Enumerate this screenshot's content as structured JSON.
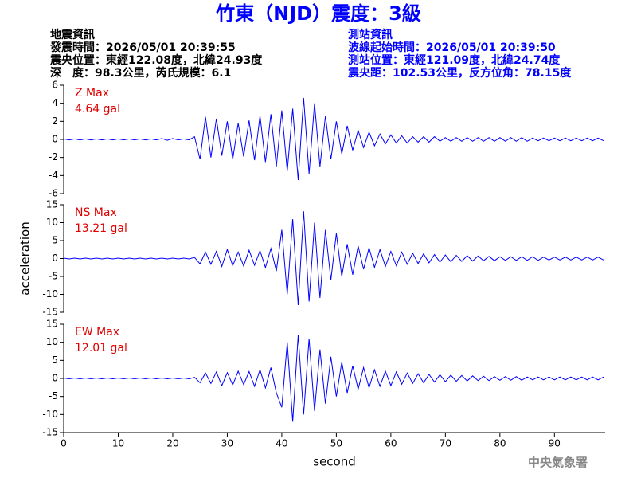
{
  "header": {
    "title": "竹東（NJD）震度：3級",
    "left": [
      "地震資訊",
      "發震時間：2026/05/01 20:39:55",
      "震央位置：東經122.08度，北緯24.93度",
      "深　度：98.3公里，芮氏規模：6.1"
    ],
    "right": [
      "測站資訊",
      "波線起始時間：2026/05/01 20:39:50",
      "測站位置：東經121.09度，北緯24.74度",
      "震央距：102.53公里，反方位角：78.15度"
    ]
  },
  "footer": "中央氣象署",
  "chart_data": [
    {
      "type": "line",
      "annotations": [
        "Z Max",
        "4.64 gal"
      ],
      "annotation_color": "#e00000",
      "xlim": [
        0,
        99.3
      ],
      "ylim": [
        -6,
        6
      ],
      "yticks": [
        -6,
        -4,
        -2,
        0,
        2,
        4,
        6
      ],
      "x": [
        0,
        1,
        2,
        3,
        4,
        5,
        6,
        7,
        8,
        9,
        10,
        11,
        12,
        13,
        14,
        15,
        16,
        17,
        18,
        19,
        20,
        21,
        22,
        23,
        24,
        25,
        26,
        27,
        28,
        29,
        30,
        31,
        32,
        33,
        34,
        35,
        36,
        37,
        38,
        39,
        40,
        41,
        42,
        43,
        44,
        45,
        46,
        47,
        48,
        49,
        50,
        51,
        52,
        53,
        54,
        55,
        56,
        57,
        58,
        59,
        60,
        61,
        62,
        63,
        64,
        65,
        66,
        67,
        68,
        69,
        70,
        71,
        72,
        73,
        74,
        75,
        76,
        77,
        78,
        79,
        80,
        81,
        82,
        83,
        84,
        85,
        86,
        87,
        88,
        89,
        90,
        91,
        92,
        93,
        94,
        95,
        96,
        97,
        98,
        99
      ],
      "series": [
        {
          "color": "#0000ff",
          "values": [
            0.05,
            -0.05,
            0.05,
            -0.05,
            0.05,
            -0.05,
            0.05,
            -0.05,
            0.05,
            -0.05,
            0.05,
            -0.05,
            0.05,
            -0.05,
            0.05,
            -0.05,
            0.05,
            -0.05,
            0.1,
            -0.1,
            0.1,
            -0.05,
            0.05,
            -0.05,
            0.3,
            -2.2,
            2.5,
            -2.0,
            2.3,
            -1.8,
            2.0,
            -2.2,
            1.8,
            -1.9,
            2.1,
            -2.3,
            2.6,
            -2.5,
            2.8,
            -3.0,
            3.2,
            -3.5,
            3.4,
            -4.5,
            4.6,
            -3.8,
            4.0,
            -3.0,
            2.6,
            -2.2,
            2.0,
            -1.6,
            1.5,
            -1.2,
            1.0,
            -0.9,
            0.8,
            -0.7,
            0.6,
            -0.5,
            0.5,
            -0.4,
            0.4,
            -0.4,
            0.3,
            -0.3,
            0.3,
            -0.3,
            0.3,
            -0.2,
            0.2,
            -0.2,
            0.2,
            -0.2,
            0.2,
            -0.2,
            0.2,
            -0.2,
            0.2,
            -0.2,
            0.2,
            -0.2,
            0.2,
            -0.2,
            0.2,
            -0.2,
            0.15,
            -0.15,
            0.15,
            -0.15,
            0.15,
            -0.15,
            0.15,
            -0.15,
            0.15,
            -0.15,
            0.15,
            -0.15,
            0.15,
            -0.15
          ]
        }
      ]
    },
    {
      "type": "line",
      "annotations": [
        "NS Max",
        "13.21 gal"
      ],
      "annotation_color": "#e00000",
      "ylabel": "acceleration",
      "xlim": [
        0,
        99.3
      ],
      "ylim": [
        -15,
        15
      ],
      "yticks": [
        -15,
        -10,
        -5,
        0,
        5,
        10,
        15
      ],
      "x": [
        0,
        1,
        2,
        3,
        4,
        5,
        6,
        7,
        8,
        9,
        10,
        11,
        12,
        13,
        14,
        15,
        16,
        17,
        18,
        19,
        20,
        21,
        22,
        23,
        24,
        25,
        26,
        27,
        28,
        29,
        30,
        31,
        32,
        33,
        34,
        35,
        36,
        37,
        38,
        39,
        40,
        41,
        42,
        43,
        44,
        45,
        46,
        47,
        48,
        49,
        50,
        51,
        52,
        53,
        54,
        55,
        56,
        57,
        58,
        59,
        60,
        61,
        62,
        63,
        64,
        65,
        66,
        67,
        68,
        69,
        70,
        71,
        72,
        73,
        74,
        75,
        76,
        77,
        78,
        79,
        80,
        81,
        82,
        83,
        84,
        85,
        86,
        87,
        88,
        89,
        90,
        91,
        92,
        93,
        94,
        95,
        96,
        97,
        98,
        99
      ],
      "series": [
        {
          "color": "#0000ff",
          "values": [
            0.1,
            -0.1,
            0.1,
            -0.1,
            0.1,
            -0.1,
            0.1,
            -0.1,
            0.1,
            -0.1,
            0.1,
            -0.1,
            0.1,
            -0.1,
            0.1,
            -0.1,
            0.1,
            -0.1,
            0.1,
            -0.1,
            0.1,
            -0.1,
            0.1,
            -0.1,
            0.3,
            -1.5,
            1.8,
            -1.6,
            2.0,
            -2.2,
            2.5,
            -2.0,
            1.8,
            -2.1,
            2.3,
            -1.9,
            2.2,
            -2.5,
            2.8,
            -3.5,
            8.0,
            -10.0,
            11.0,
            -13.0,
            13.2,
            -12.0,
            10.0,
            -11.0,
            8.0,
            -6.0,
            7.0,
            -5.0,
            4.0,
            -4.5,
            3.5,
            -3.0,
            3.0,
            -2.5,
            2.5,
            -2.2,
            2.0,
            -2.0,
            1.8,
            -1.6,
            1.5,
            -1.4,
            1.3,
            -1.2,
            1.1,
            -1.0,
            1.0,
            -0.9,
            0.9,
            -0.8,
            0.8,
            -0.7,
            0.7,
            -0.6,
            0.6,
            -0.6,
            0.5,
            -0.5,
            0.5,
            -0.5,
            0.5,
            -0.5,
            0.5,
            -0.5,
            0.4,
            -0.4,
            0.4,
            -0.4,
            0.4,
            -0.4,
            0.4,
            -0.4,
            0.4,
            -0.4,
            0.4,
            -0.4
          ]
        }
      ]
    },
    {
      "type": "line",
      "annotations": [
        "EW Max",
        "12.01 gal"
      ],
      "annotation_color": "#e00000",
      "xlabel": "second",
      "xlim": [
        0,
        99.3
      ],
      "xticks": [
        0,
        10,
        20,
        30,
        40,
        50,
        60,
        70,
        80,
        90
      ],
      "ylim": [
        -15,
        15
      ],
      "yticks": [
        -15,
        -10,
        -5,
        0,
        5,
        10,
        15
      ],
      "x": [
        0,
        1,
        2,
        3,
        4,
        5,
        6,
        7,
        8,
        9,
        10,
        11,
        12,
        13,
        14,
        15,
        16,
        17,
        18,
        19,
        20,
        21,
        22,
        23,
        24,
        25,
        26,
        27,
        28,
        29,
        30,
        31,
        32,
        33,
        34,
        35,
        36,
        37,
        38,
        39,
        40,
        41,
        42,
        43,
        44,
        45,
        46,
        47,
        48,
        49,
        50,
        51,
        52,
        53,
        54,
        55,
        56,
        57,
        58,
        59,
        60,
        61,
        62,
        63,
        64,
        65,
        66,
        67,
        68,
        69,
        70,
        71,
        72,
        73,
        74,
        75,
        76,
        77,
        78,
        79,
        80,
        81,
        82,
        83,
        84,
        85,
        86,
        87,
        88,
        89,
        90,
        91,
        92,
        93,
        94,
        95,
        96,
        97,
        98,
        99
      ],
      "series": [
        {
          "color": "#0000ff",
          "values": [
            0.1,
            -0.1,
            0.1,
            -0.1,
            0.1,
            -0.1,
            0.1,
            -0.1,
            0.1,
            -0.1,
            0.1,
            -0.1,
            0.1,
            -0.1,
            0.1,
            -0.1,
            0.1,
            -0.1,
            0.1,
            -0.1,
            0.1,
            -0.1,
            0.1,
            -0.1,
            0.3,
            -1.2,
            1.5,
            -1.4,
            1.8,
            -2.0,
            1.6,
            -1.8,
            2.0,
            -1.7,
            1.9,
            -2.2,
            2.4,
            -2.6,
            3.0,
            -4.0,
            -8.0,
            10.0,
            -12.0,
            12.0,
            -10.0,
            11.0,
            -9.0,
            8.0,
            -7.0,
            6.0,
            -5.0,
            4.5,
            -4.0,
            3.5,
            -3.0,
            3.0,
            -2.6,
            2.4,
            -2.2,
            2.0,
            -2.0,
            1.8,
            -1.6,
            1.5,
            -1.4,
            1.3,
            -1.2,
            1.1,
            -1.0,
            1.0,
            -0.9,
            0.9,
            -0.8,
            0.8,
            -0.7,
            0.7,
            -0.6,
            0.6,
            -0.6,
            0.5,
            -0.5,
            0.5,
            -0.5,
            0.5,
            -0.5,
            0.4,
            -0.4,
            0.4,
            -0.4,
            0.4,
            -0.4,
            0.4,
            -0.4,
            0.4,
            -0.4,
            0.4,
            -0.4,
            0.4,
            -0.4,
            0.4
          ]
        }
      ]
    }
  ]
}
